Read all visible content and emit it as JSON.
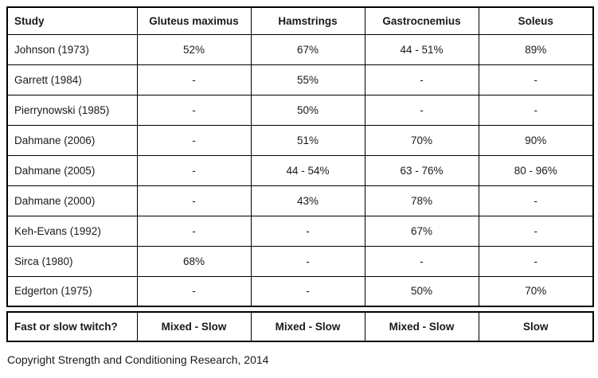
{
  "table": {
    "columns": [
      "Study",
      "Gluteus maximus",
      "Hamstrings",
      "Gastrocnemius",
      "Soleus"
    ],
    "rows": [
      {
        "study": "Johnson (1973)",
        "values": [
          "52%",
          "67%",
          "44 - 51%",
          "89%"
        ]
      },
      {
        "study": "Garrett (1984)",
        "values": [
          "-",
          "55%",
          "-",
          "-"
        ]
      },
      {
        "study": "Pierrynowski (1985)",
        "values": [
          "-",
          "50%",
          "-",
          "-"
        ]
      },
      {
        "study": "Dahmane (2006)",
        "values": [
          "-",
          "51%",
          "70%",
          "90%"
        ]
      },
      {
        "study": "Dahmane (2005)",
        "values": [
          "-",
          "44 - 54%",
          "63 - 76%",
          "80 - 96%"
        ]
      },
      {
        "study": "Dahmane (2000)",
        "values": [
          "-",
          "43%",
          "78%",
          "-"
        ]
      },
      {
        "study": "Keh-Evans (1992)",
        "values": [
          "-",
          "-",
          "67%",
          "-"
        ]
      },
      {
        "study": "Sirca (1980)",
        "values": [
          "68%",
          "-",
          "-",
          "-"
        ]
      },
      {
        "study": "Edgerton (1975)",
        "values": [
          "-",
          "-",
          "50%",
          "70%"
        ]
      }
    ]
  },
  "summary": {
    "label": "Fast or slow twitch?",
    "values": [
      "Mixed - Slow",
      "Mixed - Slow",
      "Mixed - Slow",
      "Slow"
    ]
  },
  "footer": {
    "copyright": "Copyright Strength and Conditioning Research, 2014"
  },
  "colors": {
    "border": "#000000",
    "text": "#1a1a1a",
    "background": "#ffffff"
  }
}
